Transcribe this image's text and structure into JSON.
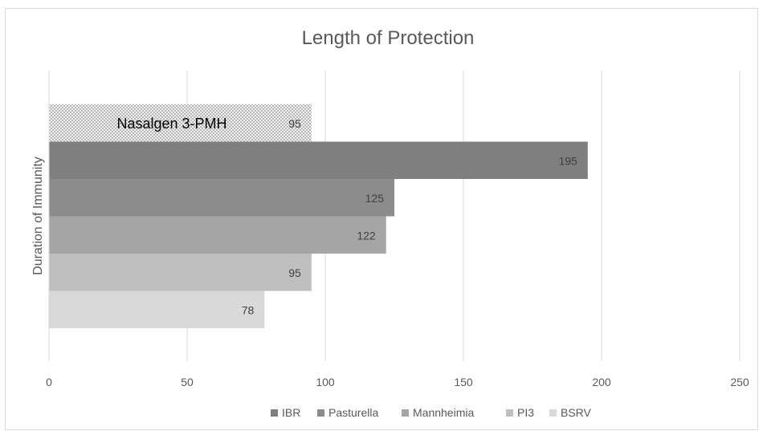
{
  "chart_data": {
    "type": "bar",
    "orientation": "horizontal",
    "title": "Length of Protection",
    "ylabel": "Duration of Immunity",
    "xlabel": "",
    "xlim": [
      0,
      250
    ],
    "x_ticks": [
      0,
      50,
      100,
      150,
      200,
      250
    ],
    "grid": true,
    "legend_position": "bottom",
    "annotation": {
      "label": "Nasalgen 3-PMH",
      "value": 95,
      "pattern": "crosshatch"
    },
    "series": [
      {
        "name": "IBR",
        "value": 195,
        "color": "#7f7f7f"
      },
      {
        "name": "Pasturella",
        "value": 125,
        "color": "#8c8c8c"
      },
      {
        "name": "Mannheimia",
        "value": 122,
        "color": "#a5a5a5"
      },
      {
        "name": "PI3",
        "value": 95,
        "color": "#bfbfbf"
      },
      {
        "name": "BSRV",
        "value": 78,
        "color": "#d9d9d9"
      }
    ]
  }
}
